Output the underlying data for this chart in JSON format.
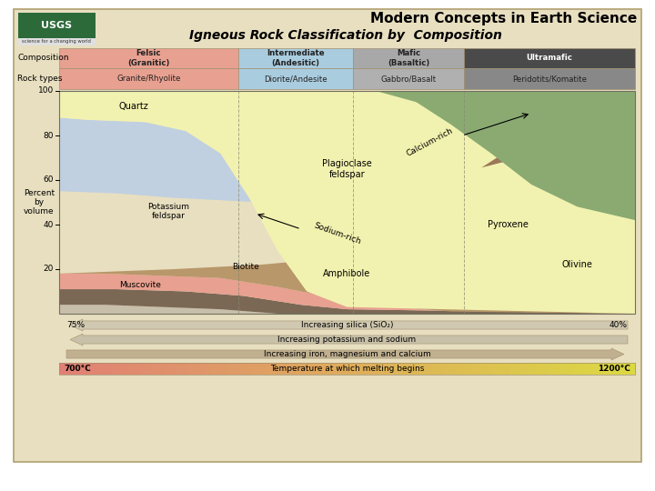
{
  "title1": "Modern Concepts in Earth Science",
  "title2": "Igneous Rock Classification by  Composition",
  "bg_color": "#e8dfc0",
  "outer_bg": "#ffffff",
  "comp_labels": [
    "Felsic\n(Granitic)",
    "Intermediate\n(Andesitic)",
    "Mafic\n(Basaltic)",
    "Ultramafic"
  ],
  "comp_colors": [
    "#e8a090",
    "#aaccdf",
    "#a8a8a8",
    "#4a4a4a"
  ],
  "comp_text_colors": [
    "#222222",
    "#222222",
    "#222222",
    "#ffffff"
  ],
  "rock_labels": [
    "Granite/Rhyolite",
    "Diorite/Andesite",
    "Gabbro/Basalt",
    "Peridotits/Komatite"
  ],
  "rock_colors": [
    "#e8a090",
    "#aaccdf",
    "#b0b0b0",
    "#888888"
  ],
  "mineral_colors": {
    "quartz": "#f2f2b0",
    "kfeldspar": "#e8a090",
    "plagioclase": "#c0d0e0",
    "biotite": "#7a6855",
    "muscovite": "#c8bfaa",
    "amphibole": "#b8976a",
    "pyroxene": "#9a7858",
    "olivine": "#8aaa72"
  },
  "chart_bg": "#e8dfc0",
  "border_color": "#b0a070"
}
